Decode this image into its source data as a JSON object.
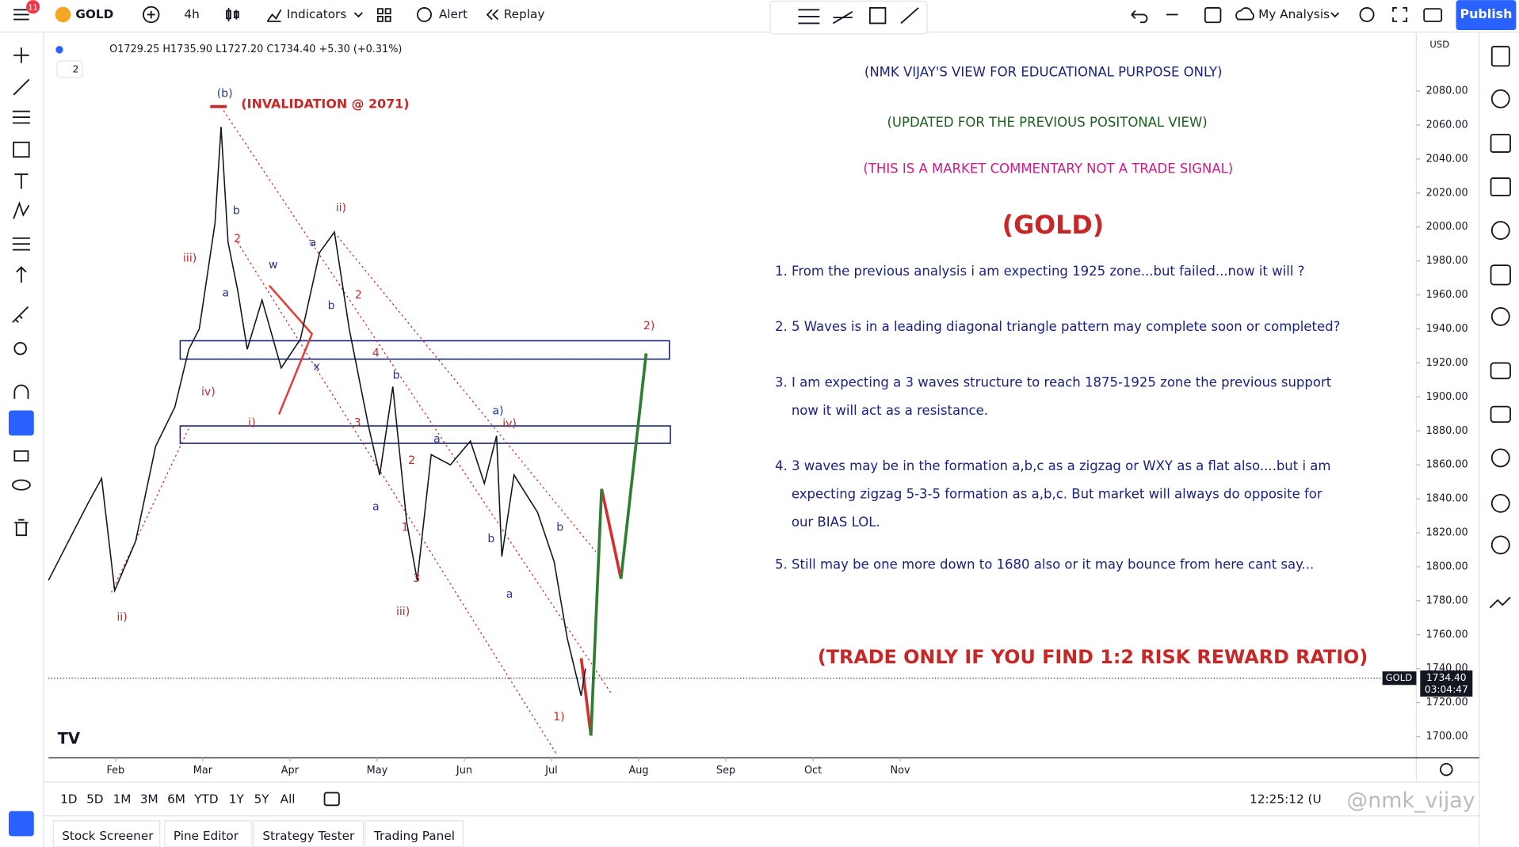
{
  "header": {
    "badge": "11",
    "symbol": "GOLD",
    "interval": "4h",
    "indicators": "Indicators",
    "alert": "Alert",
    "replay": "Replay",
    "layout": "My Analysis",
    "publish": "Publish"
  },
  "legend": {
    "ohlc": "O1729.25 H1735.90 L1727.20 C1734.40 +5.30 (+0.31%)",
    "collapse": "2"
  },
  "chart_data": {
    "type": "line",
    "color": "#131722",
    "currency": "USD",
    "x": [
      1.23,
      1.46,
      1.68,
      1.84,
      1.99,
      2.23,
      2.46,
      2.68,
      2.84,
      2.96,
      3.14,
      3.21,
      3.29,
      3.4,
      3.51,
      3.68,
      3.9,
      4.12,
      4.34,
      4.51,
      4.68,
      4.9,
      5.03,
      5.18,
      5.34,
      5.46,
      5.62,
      5.84,
      6.07,
      6.23,
      6.37,
      6.43,
      6.57,
      6.84,
      7.03,
      7.18,
      7.34,
      7.39
    ],
    "values": [
      1792,
      1815,
      1837,
      1852,
      1786,
      1815,
      1871,
      1894,
      1928,
      1940,
      2002,
      2059,
      1991,
      1963,
      1928,
      1957,
      1917,
      1934,
      1985,
      1997,
      1940,
      1883,
      1854,
      1906,
      1826,
      1792,
      1866,
      1860,
      1874,
      1849,
      1877,
      1806,
      1854,
      1832,
      1803,
      1758,
      1724,
      1740
    ],
    "xlim": [
      1.23,
      16.92
    ],
    "xticks": [
      {
        "value": 2,
        "label": "Feb"
      },
      {
        "value": 3,
        "label": "Mar"
      },
      {
        "value": 4,
        "label": "Apr"
      },
      {
        "value": 5,
        "label": "May"
      },
      {
        "value": 6,
        "label": "Jun"
      },
      {
        "value": 7,
        "label": "Jul"
      },
      {
        "value": 8,
        "label": "Aug"
      },
      {
        "value": 9,
        "label": "Sep"
      },
      {
        "value": 10,
        "label": "Oct"
      },
      {
        "value": 11,
        "label": "Nov"
      }
    ],
    "ylim": [
      1687.5,
      2111.9
    ],
    "yticks": [
      {
        "value": 1700,
        "label": "1700.00"
      },
      {
        "value": 1720,
        "label": "1720.00"
      },
      {
        "value": 1740,
        "label": "1740.00"
      },
      {
        "value": 1760,
        "label": "1760.00"
      },
      {
        "value": 1780,
        "label": "1780.00"
      },
      {
        "value": 1800,
        "label": "1800.00"
      },
      {
        "value": 1820,
        "label": "1820.00"
      },
      {
        "value": 1840,
        "label": "1840.00"
      },
      {
        "value": 1860,
        "label": "1860.00"
      },
      {
        "value": 1880,
        "label": "1880.00"
      },
      {
        "value": 1900,
        "label": "1900.00"
      },
      {
        "value": 1920,
        "label": "1920.00"
      },
      {
        "value": 1940,
        "label": "1940.00"
      },
      {
        "value": 1960,
        "label": "1960.00"
      },
      {
        "value": 1980,
        "label": "1980.00"
      },
      {
        "value": 2000,
        "label": "2000.00"
      },
      {
        "value": 2020,
        "label": "2020.00"
      },
      {
        "value": 2040,
        "label": "2040.00"
      },
      {
        "value": 2060,
        "label": "2060.00"
      },
      {
        "value": 2080,
        "label": "2080.00"
      }
    ],
    "last_price": {
      "value": 1734.4,
      "label": "1734.40"
    },
    "last_symbol": "GOLD",
    "countdown": "03:04:47"
  },
  "invalidation": "(INVALIDATION @ 2071)",
  "wave_labels": [
    "(b)",
    "b",
    "2",
    "iii)",
    "a",
    "w",
    "ii)",
    "a",
    "2",
    "b",
    "iv)",
    "i)",
    "x",
    "4",
    "b",
    "3",
    "a",
    "2",
    "a",
    "1",
    "3",
    "iii)",
    "a)",
    "iv)",
    "b",
    "b",
    "a",
    "1)",
    "2)",
    "ii)"
  ],
  "commentary": {
    "line_1": "(NMK VIJAY'S VIEW FOR EDUCATIONAL PURPOSE ONLY)",
    "line_2": "(UPDATED FOR THE PREVIOUS POSITONAL VIEW)",
    "line_3": "(THIS IS A MARKET COMMENTARY NOT A TRADE SIGNAL)",
    "heading": "(GOLD)",
    "points": [
      "1. From the previous analysis i am expecting 1925 zone...but failed...now it will ?",
      "2. 5 Waves is in a leading diagonal triangle pattern may complete soon or completed?",
      "3. I am expecting a 3 waves structure to reach 1875-1925 zone the previous support",
      "now it will act as a resistance.",
      "4. 3 waves may be in the formation a,b,c as a zigzag or WXY as a flat also....but i am",
      "expecting zigzag 5-3-5 formation as a,b,c. But market will always do opposite for",
      "our BIAS LOL.",
      "5. Still may be one more down to 1680 also or it may bounce from here cant say..."
    ],
    "footer": "(TRADE ONLY IF YOU FIND 1:2 RISK REWARD RATIO)"
  },
  "bottom": {
    "ranges": [
      "1D",
      "5D",
      "1M",
      "3M",
      "6M",
      "YTD",
      "1Y",
      "5Y",
      "All"
    ],
    "clock": "12:25:12 (U",
    "watermark": "@nmk_vijay",
    "tabs": [
      "Stock Screener",
      "Pine Editor",
      "Strategy Tester",
      "Trading Panel"
    ]
  }
}
